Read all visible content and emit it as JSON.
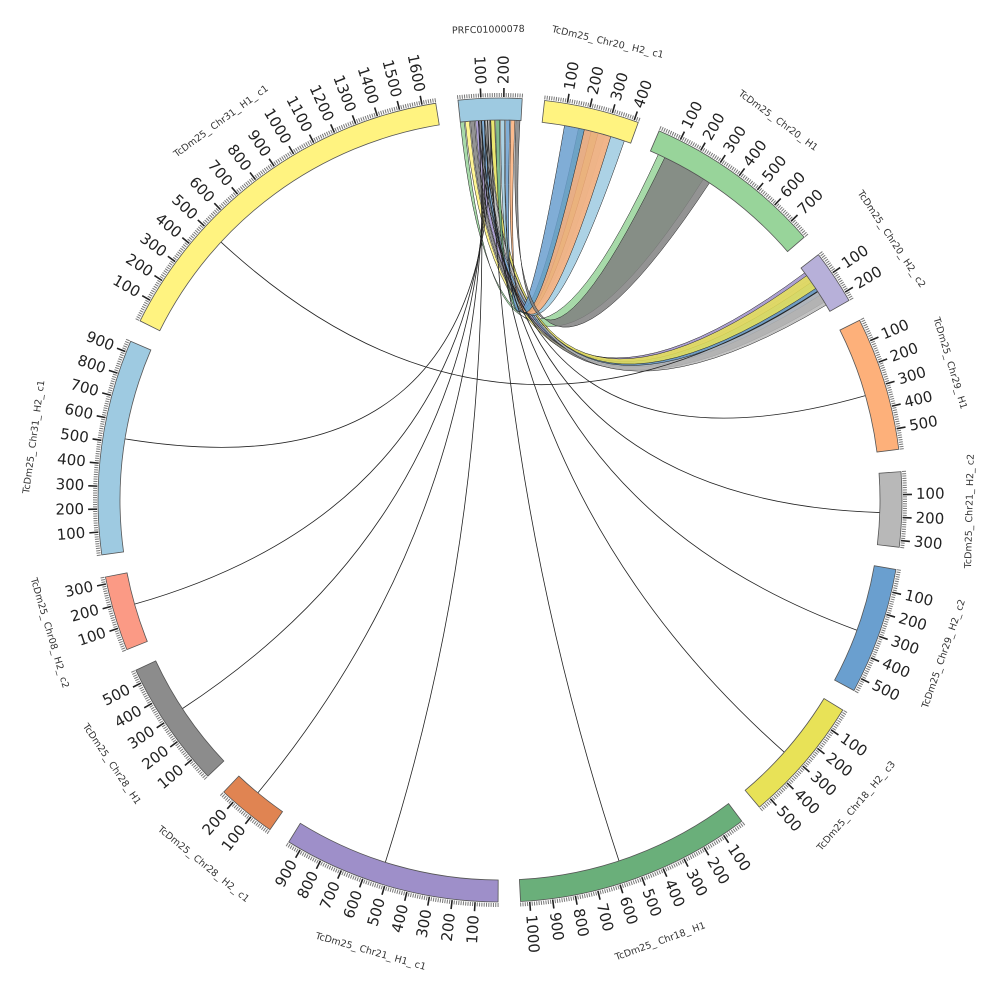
{
  "diagram": {
    "type": "circos",
    "segments": [
      {
        "id": "PRFC01000078",
        "label": "PRFC01000078",
        "length": 280,
        "color": "#9ecae1",
        "ticks": [
          100,
          200
        ]
      },
      {
        "id": "TcDm25_Chr20_H2_c1",
        "label": "TcDm25_ Chr20_ H2_ c1",
        "length": 420,
        "color": "#fff380",
        "ticks": [
          100,
          200,
          300,
          400
        ]
      },
      {
        "id": "TcDm25_Chr20_H1",
        "label": "TcDm25_ Chr20_ H1",
        "length": 790,
        "color": "#98d49a",
        "ticks": [
          100,
          200,
          300,
          400,
          500,
          600,
          700
        ]
      },
      {
        "id": "TcDm25_Chr20_H2_c2",
        "label": "TcDm25_ Chr20_ H2_ c2",
        "length": 240,
        "color": "#b7b0d9",
        "ticks": [
          100,
          200
        ]
      },
      {
        "id": "TcDm25_Chr29_H1",
        "label": "TcDm25_ Chr29_ H1",
        "length": 590,
        "color": "#fdb07a",
        "ticks": [
          100,
          200,
          300,
          400,
          500
        ]
      },
      {
        "id": "TcDm25_Chr21_H2_c2",
        "label": "TcDm25_ Chr21_ H2_ c2",
        "length": 330,
        "color": "#b8b8b8",
        "ticks": [
          100,
          200,
          300
        ]
      },
      {
        "id": "TcDm25_Chr29_H2_c2",
        "label": "TcDm25_ Chr29_ H2_ c2",
        "length": 560,
        "color": "#6a9fcf",
        "ticks": [
          100,
          200,
          300,
          400,
          500
        ]
      },
      {
        "id": "TcDm25_Chr18_H2_c3",
        "label": "TcDm25_ Chr18_ H2_ c3",
        "length": 560,
        "color": "#e8e257",
        "ticks": [
          100,
          200,
          300,
          400,
          500
        ]
      },
      {
        "id": "TcDm25_Chr18_H1",
        "label": "TcDm25_ Chr18_ H1",
        "length": 1040,
        "color": "#6aaf7a",
        "ticks": [
          100,
          200,
          300,
          400,
          500,
          600,
          700,
          800,
          900,
          1000
        ]
      },
      {
        "id": "TcDm25_Chr21_H1_c1",
        "label": "TcDm25_ Chr21_ H1_ c1",
        "length": 960,
        "color": "#9e8fc9",
        "ticks": [
          100,
          200,
          300,
          400,
          500,
          600,
          700,
          800,
          900
        ]
      },
      {
        "id": "TcDm25_Chr28_H2_c1",
        "label": "TcDm25_ Chr28_ H2_ c1",
        "length": 260,
        "color": "#e08452",
        "ticks": [
          100,
          200
        ]
      },
      {
        "id": "TcDm25_Chr28_H1",
        "label": "TcDm25_ Chr28_ H1",
        "length": 560,
        "color": "#8c8c8c",
        "ticks": [
          100,
          200,
          300,
          400,
          500
        ]
      },
      {
        "id": "TcDm25_Chr08_H2_c2",
        "label": "TcDm25_ Chr08_ H2_ c2",
        "length": 330,
        "color": "#fb9a85",
        "ticks": [
          100,
          200,
          300
        ]
      },
      {
        "id": "TcDm25_Chr31_H2_c1",
        "label": "TcDm25_ Chr31_ H2_ c1",
        "length": 950,
        "color": "#9ecae1",
        "ticks": [
          100,
          200,
          300,
          400,
          500,
          600,
          700,
          800,
          900
        ]
      },
      {
        "id": "TcDm25_Chr31_H1_c1",
        "label": "TcDm25_ Chr31_ H1_ c1",
        "length": 1660,
        "color": "#fff380",
        "ticks": [
          100,
          200,
          300,
          400,
          500,
          600,
          700,
          800,
          900,
          1000,
          1100,
          1200,
          1300,
          1400,
          1500,
          1600
        ]
      }
    ],
    "ribbons": [
      {
        "source": "PRFC01000078",
        "target": "TcDm25_Chr20_H1",
        "color": "#98d49a"
      },
      {
        "source": "PRFC01000078",
        "target": "TcDm25_Chr20_H2_c2",
        "color": "#fff380"
      },
      {
        "source": "PRFC01000078",
        "target": "TcDm25_Chr20_H2_c2",
        "color": "#808080"
      },
      {
        "source": "PRFC01000078",
        "target": "TcDm25_Chr20_H2_c2",
        "color": "#9e8fc9"
      },
      {
        "source": "PRFC01000078",
        "target": "TcDm25_Chr20_H2_c2",
        "color": "#6a9fcf"
      },
      {
        "source": "PRFC01000078",
        "target": "TcDm25_Chr20_H2_c2",
        "color": "#b8b8b8"
      },
      {
        "source": "PRFC01000078",
        "target": "TcDm25_Chr20_H2_c2",
        "color": "#e8e257"
      },
      {
        "source": "PRFC01000078",
        "target": "TcDm25_Chr20_H2_c1",
        "color": "#6aaf7a"
      },
      {
        "source": "PRFC01000078",
        "target": "TcDm25_Chr20_H2_c1",
        "color": "#9ecae1"
      },
      {
        "source": "PRFC01000078",
        "target": "TcDm25_Chr20_H2_c1",
        "color": "#6a9fcf"
      },
      {
        "source": "PRFC01000078",
        "target": "TcDm25_Chr20_H2_c1",
        "color": "#fdb07a"
      },
      {
        "source": "PRFC01000078",
        "target": "TcDm25_Chr20_H1",
        "color": "#808080"
      }
    ],
    "links": [
      {
        "source": "PRFC01000078",
        "target": "TcDm25_Chr29_H1",
        "color": "#333333"
      },
      {
        "source": "PRFC01000078",
        "target": "TcDm25_Chr21_H2_c2",
        "color": "#333333"
      },
      {
        "source": "PRFC01000078",
        "target": "TcDm25_Chr29_H2_c2",
        "color": "#e08452"
      },
      {
        "source": "PRFC01000078",
        "target": "TcDm25_Chr18_H2_c3",
        "color": "#333333"
      },
      {
        "source": "PRFC01000078",
        "target": "TcDm25_Chr18_H1",
        "color": "#333333"
      },
      {
        "source": "PRFC01000078",
        "target": "TcDm25_Chr21_H1_c1",
        "color": "#e08452"
      },
      {
        "source": "PRFC01000078",
        "target": "TcDm25_Chr28_H2_c1",
        "color": "#333333"
      },
      {
        "source": "PRFC01000078",
        "target": "TcDm25_Chr28_H1",
        "color": "#333333"
      },
      {
        "source": "PRFC01000078",
        "target": "TcDm25_Chr08_H2_c2",
        "color": "#333333"
      },
      {
        "source": "PRFC01000078",
        "target": "TcDm25_Chr31_H2_c1",
        "color": "#333333"
      },
      {
        "source": "TcDm25_Chr31_H1_c1",
        "target": "TcDm25_Chr20_H2_c2",
        "color": "#333333"
      }
    ]
  }
}
